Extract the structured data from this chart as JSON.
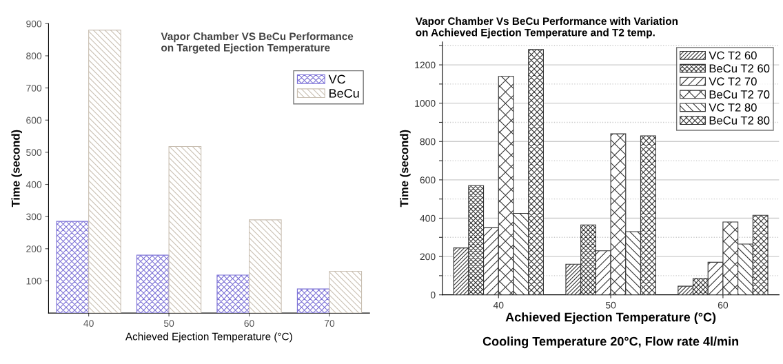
{
  "chart_data": [
    {
      "type": "bar",
      "title": "Vapor Chamber VS BeCu Performance\non Targeted Ejection Temperature",
      "xlabel": "Achieved Ejection Temperature (°C)",
      "ylabel": "Time (second)",
      "categories": [
        "40",
        "50",
        "60",
        "70"
      ],
      "series": [
        {
          "name": "VC",
          "color": "#7b70d6",
          "values": [
            285,
            180,
            118,
            75
          ]
        },
        {
          "name": "BeCu",
          "color": "#c9bfb2",
          "values": [
            880,
            518,
            290,
            130
          ]
        }
      ],
      "ylim": [
        0,
        900
      ],
      "yticks": [
        100,
        200,
        300,
        400,
        500,
        600,
        700,
        800,
        900
      ],
      "grid": false,
      "legend": "right"
    },
    {
      "type": "bar",
      "title": "Vapor Chamber Vs BeCu Performance with Variation\non Achieved Ejection Temperature and T2 temp.",
      "xlabel": "Achieved Ejection Temperature (°C)",
      "ylabel": "Time (second)",
      "annotations": [
        "Cooling Temperature 20°C, Flow rate 4l/min"
      ],
      "categories": [
        "40",
        "50",
        "60"
      ],
      "series": [
        {
          "name": "VC T2 60",
          "color": "#333333",
          "values": [
            245,
            160,
            45
          ]
        },
        {
          "name": "BeCu T2 60",
          "color": "#333333",
          "values": [
            570,
            365,
            85
          ]
        },
        {
          "name": "VC T2 70",
          "color": "#333333",
          "values": [
            350,
            230,
            170
          ]
        },
        {
          "name": "BeCu T2 70",
          "color": "#333333",
          "values": [
            1140,
            840,
            380
          ]
        },
        {
          "name": "VC T2 80",
          "color": "#333333",
          "values": [
            425,
            330,
            265
          ]
        },
        {
          "name": "BeCu T2 80",
          "color": "#333333",
          "values": [
            1280,
            830,
            415
          ]
        }
      ],
      "ylim": [
        0,
        1320
      ],
      "yticks": [
        0,
        {
          "value": 100,
          "label": null
        },
        200,
        {
          "value": 300,
          "label": null
        },
        400,
        {
          "value": 500,
          "label": null
        },
        600,
        {
          "value": 700,
          "label": null
        },
        800,
        {
          "value": 900,
          "label": null
        },
        1000,
        {
          "value": 1100,
          "label": null
        },
        1200,
        {
          "value": 1300,
          "label": null
        }
      ],
      "grid": "y",
      "legend": "top right"
    }
  ]
}
